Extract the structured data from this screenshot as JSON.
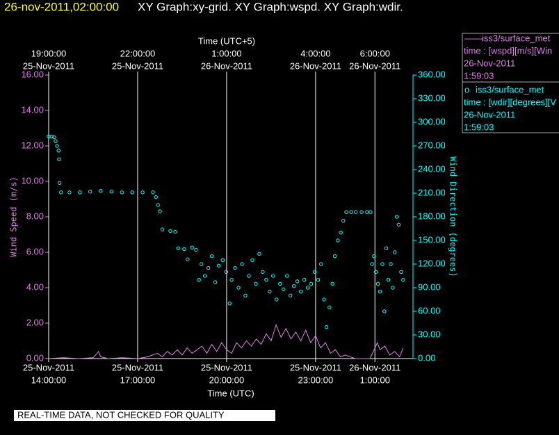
{
  "header": {
    "timestamp": "26-nov-2011,02:00:00",
    "graphs": "XY Graph:xy-grid.  XY Graph:wspd.  XY Graph:wdir."
  },
  "legend": [
    {
      "symbol": "——",
      "name": "iss3/surface_met",
      "field": "time : [wspd][m/s][Win",
      "date": "26-Nov-2011",
      "time": "1:59:03"
    },
    {
      "symbol": "o",
      "name": "iss3/surface_met",
      "field": "time : [wdir][degrees][V",
      "date": "26-Nov-2011",
      "time": "1:59:03"
    }
  ],
  "notice": "REAL-TIME DATA, NOT CHECKED FOR QUALITY",
  "chart_data": {
    "type": "line_scatter",
    "xlabel": "Time (UTC)",
    "x2label": "Time (UTC+5)",
    "ylabel": "Wind Speed (m/s)",
    "y2label": "Wind Direction (degrees)",
    "grid": true,
    "xlim": [
      "2011-11-25T14:00",
      "2011-11-26T02:17"
    ],
    "xticks": [
      {
        "value": "2011-11-25T14:00",
        "label": [
          "25-Nov-2011",
          "14:00:00"
        ]
      },
      {
        "value": "2011-11-25T17:00",
        "label": [
          "25-Nov-2011",
          "17:00:00"
        ]
      },
      {
        "value": "2011-11-25T20:00",
        "label": [
          "25-Nov-2011",
          "20:00:00"
        ]
      },
      {
        "value": "2011-11-25T23:00",
        "label": [
          "25-Nov-2011",
          "23:00:00"
        ]
      },
      {
        "value": "2011-11-26T01:00",
        "label": [
          "26-Nov-2011",
          "1:00:00"
        ]
      }
    ],
    "x2ticks": [
      {
        "value": "2011-11-25T14:00",
        "label": [
          "19:00:00",
          "25-Nov-2011"
        ]
      },
      {
        "value": "2011-11-25T17:00",
        "label": [
          "22:00:00",
          "25-Nov-2011"
        ]
      },
      {
        "value": "2011-11-25T20:00",
        "label": [
          "1:00:00",
          "26-Nov-2011"
        ]
      },
      {
        "value": "2011-11-25T23:00",
        "label": [
          "4:00:00",
          "26-Nov-2011"
        ]
      },
      {
        "value": "2011-11-26T01:00",
        "label": [
          "6:00:00",
          "26-Nov-2011"
        ]
      }
    ],
    "ylim": [
      0,
      16
    ],
    "yticks": [
      {
        "value": 0,
        "label": "0.00"
      },
      {
        "value": 2,
        "label": "2.00"
      },
      {
        "value": 4,
        "label": "4.00"
      },
      {
        "value": 6,
        "label": "6.00"
      },
      {
        "value": 8,
        "label": "8.00"
      },
      {
        "value": 10,
        "label": "10.00"
      },
      {
        "value": 12,
        "label": "12.00"
      },
      {
        "value": 14,
        "label": "14.00"
      },
      {
        "value": 16,
        "label": "16.00"
      }
    ],
    "y2lim": [
      0,
      360
    ],
    "y2ticks": [
      {
        "value": 0,
        "label": "0.00"
      },
      {
        "value": 30,
        "label": "30.00"
      },
      {
        "value": 60,
        "label": "60.00"
      },
      {
        "value": 90,
        "label": "90.00"
      },
      {
        "value": 120,
        "label": "120.00"
      },
      {
        "value": 150,
        "label": "150.00"
      },
      {
        "value": 180,
        "label": "180.00"
      },
      {
        "value": 210,
        "label": "210.00"
      },
      {
        "value": 240,
        "label": "240.00"
      },
      {
        "value": 270,
        "label": "270.00"
      },
      {
        "value": 300,
        "label": "300.00"
      },
      {
        "value": 330,
        "label": "330.00"
      },
      {
        "value": 360,
        "label": "360.00"
      }
    ],
    "series": [
      {
        "name": "wspd",
        "color": "#e080e8",
        "mark": "line",
        "axis": "y",
        "x": [
          "2011-11-25T14:00",
          "2011-11-25T14:30",
          "2011-11-25T15:00",
          "2011-11-25T15:30",
          "2011-11-25T15:38",
          "2011-11-25T15:41",
          "2011-11-25T15:45",
          "2011-11-25T16:00",
          "2011-11-25T16:30",
          "2011-11-25T17:00",
          "2011-11-25T17:20",
          "2011-11-25T17:40",
          "2011-11-25T17:50",
          "2011-11-25T18:00",
          "2011-11-25T18:10",
          "2011-11-25T18:20",
          "2011-11-25T18:30",
          "2011-11-25T18:40",
          "2011-11-25T18:50",
          "2011-11-25T19:00",
          "2011-11-25T19:10",
          "2011-11-25T19:20",
          "2011-11-25T19:30",
          "2011-11-25T19:40",
          "2011-11-25T19:50",
          "2011-11-25T20:00",
          "2011-11-25T20:10",
          "2011-11-25T20:20",
          "2011-11-25T20:30",
          "2011-11-25T20:40",
          "2011-11-25T20:50",
          "2011-11-25T21:00",
          "2011-11-25T21:10",
          "2011-11-25T21:20",
          "2011-11-25T21:30",
          "2011-11-25T21:40",
          "2011-11-25T21:50",
          "2011-11-25T22:00",
          "2011-11-25T22:10",
          "2011-11-25T22:20",
          "2011-11-25T22:30",
          "2011-11-25T22:40",
          "2011-11-25T22:50",
          "2011-11-25T23:00",
          "2011-11-25T23:10",
          "2011-11-25T23:20",
          "2011-11-25T23:30",
          "2011-11-25T23:40",
          "2011-11-25T23:50",
          "2011-11-26T00:00",
          "2011-11-26T00:20",
          "2011-11-26T00:50",
          "2011-11-26T01:00",
          "2011-11-26T01:05",
          "2011-11-26T01:10",
          "2011-11-26T01:20",
          "2011-11-26T01:30",
          "2011-11-26T01:40",
          "2011-11-26T01:50",
          "2011-11-26T01:57"
        ],
        "values": [
          0,
          0.05,
          0,
          0.05,
          0.3,
          0.4,
          0.1,
          0,
          0.05,
          0,
          0.1,
          0.3,
          0.1,
          0.4,
          0.2,
          0.5,
          0.2,
          0.6,
          0.3,
          0.5,
          0.7,
          0.3,
          0.8,
          0.4,
          0.9,
          0.5,
          0.3,
          0.9,
          0.6,
          1.0,
          0.7,
          1.1,
          0.8,
          1.4,
          1.0,
          1.9,
          1.2,
          1.7,
          1.1,
          1.5,
          1.0,
          1.6,
          0.9,
          1.3,
          0.6,
          0.9,
          0.3,
          0.5,
          0.1,
          0.2,
          0,
          0,
          0.6,
          0.9,
          0.5,
          0.7,
          0.2,
          0.4,
          0.1,
          0.6
        ]
      },
      {
        "name": "wdir",
        "color": "#00ffff",
        "mark": "circle",
        "axis": "y2",
        "x": [
          "2011-11-25T14:00",
          "2011-11-25T14:06",
          "2011-11-25T14:11",
          "2011-11-25T14:14",
          "2011-11-25T14:17",
          "2011-11-25T14:20",
          "2011-11-25T14:21",
          "2011-11-25T14:22",
          "2011-11-25T14:25",
          "2011-11-25T14:42",
          "2011-11-25T15:03",
          "2011-11-25T15:24",
          "2011-11-25T15:45",
          "2011-11-25T16:07",
          "2011-11-25T16:28",
          "2011-11-25T16:49",
          "2011-11-25T17:10",
          "2011-11-25T17:31",
          "2011-11-25T17:37",
          "2011-11-25T17:41",
          "2011-11-25T17:45",
          "2011-11-25T17:50",
          "2011-11-25T18:06",
          "2011-11-25T18:16",
          "2011-11-25T18:22",
          "2011-11-25T18:34",
          "2011-11-25T18:41",
          "2011-11-25T18:50",
          "2011-11-25T18:58",
          "2011-11-25T19:04",
          "2011-11-25T19:09",
          "2011-11-25T19:16",
          "2011-11-25T19:23",
          "2011-11-25T19:30",
          "2011-11-25T19:37",
          "2011-11-25T19:44",
          "2011-11-25T19:52",
          "2011-11-25T19:59",
          "2011-11-25T20:06",
          "2011-11-25T20:10",
          "2011-11-25T20:17",
          "2011-11-25T20:24",
          "2011-11-25T20:31",
          "2011-11-25T20:38",
          "2011-11-25T20:45",
          "2011-11-25T20:52",
          "2011-11-25T20:59",
          "2011-11-25T21:06",
          "2011-11-25T21:13",
          "2011-11-25T21:20",
          "2011-11-25T21:27",
          "2011-11-25T21:34",
          "2011-11-25T21:41",
          "2011-11-25T21:48",
          "2011-11-25T21:55",
          "2011-11-25T22:02",
          "2011-11-25T22:09",
          "2011-11-25T22:16",
          "2011-11-25T22:23",
          "2011-11-25T22:30",
          "2011-11-25T22:37",
          "2011-11-25T22:44",
          "2011-11-25T22:51",
          "2011-11-25T22:58",
          "2011-11-25T23:05",
          "2011-11-25T23:11",
          "2011-11-25T23:17",
          "2011-11-25T23:22",
          "2011-11-25T23:28",
          "2011-11-25T23:34",
          "2011-11-25T23:39",
          "2011-11-25T23:45",
          "2011-11-25T23:51",
          "2011-11-25T23:56",
          "2011-11-26T00:02",
          "2011-11-26T00:12",
          "2011-11-26T00:21",
          "2011-11-26T00:33",
          "2011-11-26T00:44",
          "2011-11-26T00:51",
          "2011-11-26T00:54",
          "2011-11-26T00:58",
          "2011-11-26T01:02",
          "2011-11-26T01:06",
          "2011-11-26T01:10",
          "2011-11-26T01:15",
          "2011-11-26T01:19",
          "2011-11-26T01:23",
          "2011-11-26T01:27",
          "2011-11-26T01:32",
          "2011-11-26T01:36",
          "2011-11-26T01:40",
          "2011-11-26T01:44",
          "2011-11-26T01:48",
          "2011-11-26T01:53",
          "2011-11-26T01:57"
        ],
        "values": [
          282,
          282,
          281,
          276,
          270,
          264,
          253,
          223,
          211,
          211,
          211,
          212,
          213,
          212,
          211,
          211,
          211,
          211,
          205,
          195,
          187,
          164,
          162,
          161,
          140,
          139,
          126,
          141,
          138,
          100,
          120,
          105,
          115,
          130,
          97,
          118,
          125,
          110,
          70,
          100,
          115,
          90,
          120,
          80,
          105,
          125,
          95,
          133,
          110,
          100,
          85,
          105,
          75,
          95,
          88,
          105,
          80,
          92,
          98,
          85,
          100,
          90,
          95,
          110,
          100,
          120,
          75,
          40,
          65,
          95,
          130,
          150,
          160,
          175,
          186,
          186,
          186,
          186,
          186,
          186,
          120,
          130,
          110,
          95,
          85,
          120,
          60,
          140,
          100,
          120,
          90,
          135,
          180,
          170,
          110,
          100
        ]
      }
    ]
  }
}
